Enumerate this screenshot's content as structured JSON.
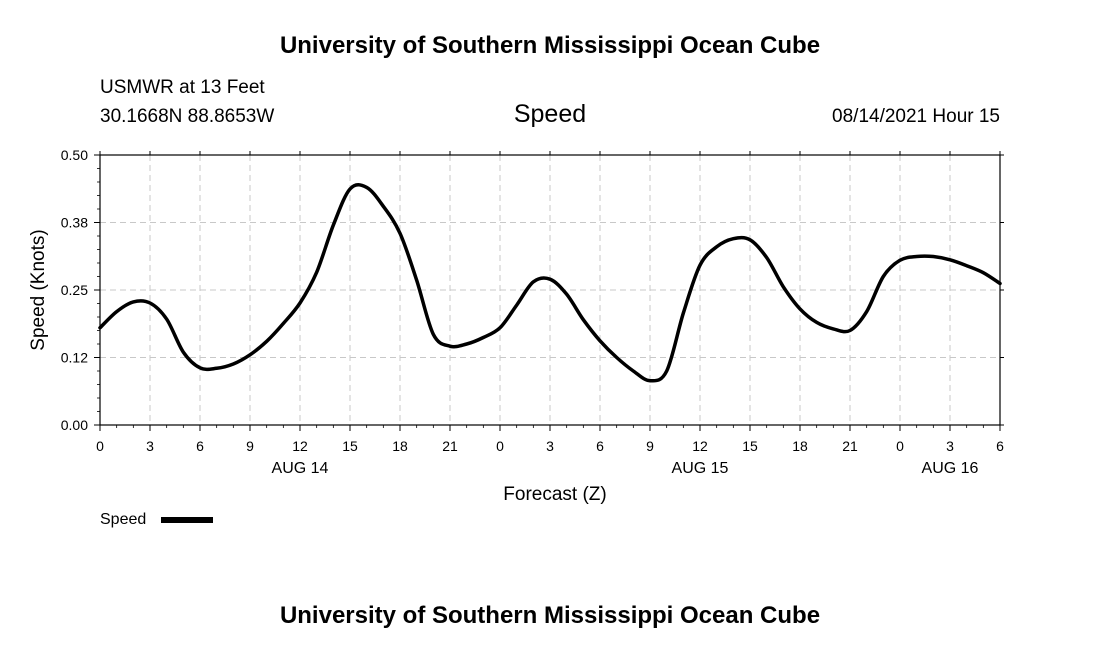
{
  "header": {
    "title_top": "University of Southern Mississippi Ocean Cube",
    "station": "USMWR at 13 Feet",
    "coords": "30.1668N  88.8653W",
    "variable": "Speed",
    "timestamp": "08/14/2021 Hour 15",
    "title_bottom": "University of Southern Mississippi Ocean Cube"
  },
  "legend": {
    "label": "Speed"
  },
  "chart_data": {
    "type": "line",
    "title": "Speed",
    "xlabel": "Forecast (Z)",
    "ylabel": "Speed (Knots)",
    "x_unit": "hours from 00Z Aug 14",
    "xlim": [
      0,
      54
    ],
    "ylim": [
      0,
      0.5
    ],
    "grid": true,
    "legend_position": "bottom-left",
    "series_color": "#000000",
    "y_ticks": [
      {
        "value": 0.0,
        "label": "0.00"
      },
      {
        "value": 0.125,
        "label": "0.12"
      },
      {
        "value": 0.25,
        "label": "0.25"
      },
      {
        "value": 0.375,
        "label": "0.38"
      },
      {
        "value": 0.5,
        "label": "0.50"
      }
    ],
    "x_ticks": [
      {
        "value": 0,
        "label": "0"
      },
      {
        "value": 3,
        "label": "3"
      },
      {
        "value": 6,
        "label": "6"
      },
      {
        "value": 9,
        "label": "9"
      },
      {
        "value": 12,
        "label": "12"
      },
      {
        "value": 15,
        "label": "15"
      },
      {
        "value": 18,
        "label": "18"
      },
      {
        "value": 21,
        "label": "21"
      },
      {
        "value": 24,
        "label": "0"
      },
      {
        "value": 27,
        "label": "3"
      },
      {
        "value": 30,
        "label": "6"
      },
      {
        "value": 33,
        "label": "9"
      },
      {
        "value": 36,
        "label": "12"
      },
      {
        "value": 39,
        "label": "15"
      },
      {
        "value": 42,
        "label": "18"
      },
      {
        "value": 45,
        "label": "21"
      },
      {
        "value": 48,
        "label": "0"
      },
      {
        "value": 51,
        "label": "3"
      },
      {
        "value": 54,
        "label": "6"
      }
    ],
    "date_labels": [
      {
        "value": 12,
        "label": "AUG 14"
      },
      {
        "value": 36,
        "label": "AUG 15"
      },
      {
        "value": 51,
        "label": "AUG 16"
      }
    ],
    "series": [
      {
        "name": "Speed",
        "x": [
          0,
          1,
          2,
          3,
          4,
          5,
          6,
          7,
          8,
          9,
          10,
          11,
          12,
          13,
          14,
          15,
          16,
          17,
          18,
          19,
          20,
          21,
          22,
          23,
          24,
          25,
          26,
          27,
          28,
          29,
          30,
          31,
          32,
          33,
          34,
          35,
          36,
          37,
          38,
          39,
          40,
          41,
          42,
          43,
          44,
          45,
          46,
          47,
          48,
          49,
          50,
          51,
          52,
          53,
          54
        ],
        "y": [
          0.18,
          0.21,
          0.228,
          0.226,
          0.196,
          0.135,
          0.106,
          0.105,
          0.113,
          0.13,
          0.155,
          0.188,
          0.226,
          0.283,
          0.37,
          0.437,
          0.44,
          0.405,
          0.355,
          0.268,
          0.168,
          0.146,
          0.15,
          0.162,
          0.18,
          0.222,
          0.265,
          0.27,
          0.242,
          0.195,
          0.156,
          0.125,
          0.1,
          0.082,
          0.1,
          0.207,
          0.296,
          0.33,
          0.345,
          0.343,
          0.31,
          0.256,
          0.215,
          0.19,
          0.178,
          0.175,
          0.21,
          0.275,
          0.305,
          0.312,
          0.312,
          0.306,
          0.295,
          0.282,
          0.262
        ]
      }
    ]
  }
}
